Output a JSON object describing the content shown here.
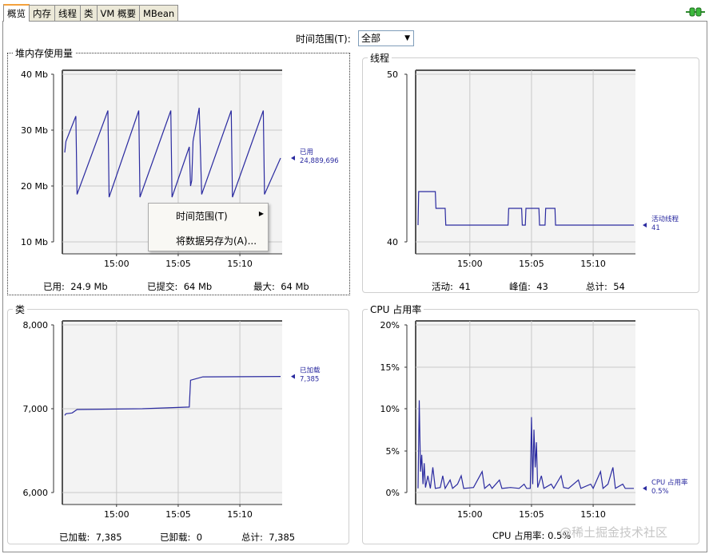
{
  "tabs": [
    "概览",
    "内存",
    "线程",
    "类",
    "VM 概要",
    "MBean"
  ],
  "time_range": {
    "label": "时间范围(T):",
    "value": "全部"
  },
  "context_menu": {
    "items": [
      "时间范围(T)",
      "将数据另存为(A)..."
    ]
  },
  "watermark": "@稀土掘金技术社区",
  "colors": {
    "line": "#2b2ba0",
    "grid": "#c8c8c8",
    "plot_bg": "#f3f3f3",
    "tab_accent": "#f4a13c"
  },
  "panels": {
    "heap": {
      "title": "堆内存使用量",
      "stats": [
        {
          "label": "已用:",
          "value": "24.9 Mb"
        },
        {
          "label": "已提交:",
          "value": "64 Mb"
        },
        {
          "label": "最大:",
          "value": "64 Mb"
        }
      ]
    },
    "threads": {
      "title": "线程",
      "stats": [
        {
          "label": "活动:",
          "value": "41"
        },
        {
          "label": "峰值:",
          "value": "43"
        },
        {
          "label": "总计:",
          "value": "54"
        }
      ]
    },
    "classes": {
      "title": "类",
      "stats": [
        {
          "label": "已加载:",
          "value": "7,385"
        },
        {
          "label": "已卸载:",
          "value": "0"
        },
        {
          "label": "总计:",
          "value": "7,385"
        }
      ]
    },
    "cpu": {
      "title": "CPU 占用率",
      "stats": [
        {
          "label": "CPU 占用率:",
          "value": "0.5%"
        }
      ]
    }
  },
  "chart_data": [
    {
      "id": "heap",
      "type": "line",
      "y_ticks": [
        "40 Mb",
        "30 Mb",
        "20 Mb",
        "10 Mb"
      ],
      "ylim": [
        10,
        40
      ],
      "x_ticks": [
        "15:00",
        "15:05",
        "15:10"
      ],
      "x_tick_minutes": [
        4.2,
        9.2,
        14.2
      ],
      "xlim_minutes": [
        0,
        17.5
      ],
      "series": [
        {
          "name": "已用",
          "last_value": "24,889,696",
          "points": [
            [
              0,
              26
            ],
            [
              0.1,
              28
            ],
            [
              0.9,
              32.5
            ],
            [
              1,
              18.5
            ],
            [
              3.5,
              33.5
            ],
            [
              3.6,
              18
            ],
            [
              6,
              33.5
            ],
            [
              6.1,
              18
            ],
            [
              8.6,
              33.5
            ],
            [
              8.7,
              18
            ],
            [
              10.1,
              27
            ],
            [
              10.2,
              20
            ],
            [
              10.3,
              21
            ],
            [
              10.4,
              28
            ],
            [
              10.9,
              34
            ],
            [
              11.1,
              18.5
            ],
            [
              13.5,
              33.5
            ],
            [
              13.6,
              18
            ],
            [
              16.1,
              33.5
            ],
            [
              16.2,
              18.5
            ],
            [
              17.5,
              25
            ]
          ]
        }
      ]
    },
    {
      "id": "threads",
      "type": "line",
      "y_ticks": [
        "50",
        "40"
      ],
      "ylim": [
        40,
        50
      ],
      "x_ticks": [
        "15:00",
        "15:05",
        "15:10"
      ],
      "x_tick_minutes": [
        4.2,
        9.2,
        14.2
      ],
      "xlim_minutes": [
        0,
        17.5
      ],
      "series": [
        {
          "name": "活动线程",
          "last_value": "41",
          "points": [
            [
              0,
              41
            ],
            [
              0.05,
              43
            ],
            [
              1.4,
              43
            ],
            [
              1.45,
              42
            ],
            [
              2.2,
              42
            ],
            [
              2.25,
              41
            ],
            [
              7.3,
              41
            ],
            [
              7.35,
              42
            ],
            [
              8.4,
              42
            ],
            [
              8.45,
              41
            ],
            [
              8.7,
              41
            ],
            [
              8.75,
              42
            ],
            [
              9.8,
              42
            ],
            [
              9.85,
              41
            ],
            [
              10.3,
              41
            ],
            [
              10.35,
              42
            ],
            [
              11.1,
              42
            ],
            [
              11.15,
              41
            ],
            [
              17.5,
              41
            ]
          ]
        }
      ]
    },
    {
      "id": "classes",
      "type": "line",
      "y_ticks": [
        "8,000",
        "7,000",
        "6,000"
      ],
      "ylim": [
        6000,
        8000
      ],
      "x_ticks": [
        "15:00",
        "15:05",
        "15:10"
      ],
      "x_tick_minutes": [
        4.2,
        9.2,
        14.2
      ],
      "xlim_minutes": [
        0,
        17.5
      ],
      "series": [
        {
          "name": "已加载",
          "last_value": "7,385",
          "points": [
            [
              0,
              6920
            ],
            [
              0.1,
              6940
            ],
            [
              0.6,
              6950
            ],
            [
              1,
              6990
            ],
            [
              6.3,
              7000
            ],
            [
              10.1,
              7020
            ],
            [
              10.2,
              7340
            ],
            [
              11.2,
              7380
            ],
            [
              17.5,
              7385
            ]
          ]
        }
      ]
    },
    {
      "id": "cpu",
      "type": "line",
      "y_ticks": [
        "20%",
        "15%",
        "10%",
        "5%",
        "0%"
      ],
      "ylim": [
        0,
        20
      ],
      "x_ticks": [
        "15:00",
        "15:05",
        "15:10"
      ],
      "x_tick_minutes": [
        4.2,
        9.2,
        14.2
      ],
      "xlim_minutes": [
        0,
        17.5
      ],
      "series": [
        {
          "name": "CPU 占用率",
          "last_value": "0.5%",
          "points": [
            [
              0,
              0.5
            ],
            [
              0.1,
              11
            ],
            [
              0.2,
              2.5
            ],
            [
              0.3,
              4.5
            ],
            [
              0.4,
              1
            ],
            [
              0.5,
              3.5
            ],
            [
              0.6,
              0.6
            ],
            [
              0.8,
              2
            ],
            [
              1,
              0.5
            ],
            [
              1.2,
              3
            ],
            [
              1.4,
              0.5
            ],
            [
              1.8,
              0.6
            ],
            [
              2,
              2
            ],
            [
              2.2,
              0.5
            ],
            [
              2.6,
              1.5
            ],
            [
              2.8,
              0.5
            ],
            [
              3.2,
              1
            ],
            [
              3.5,
              2
            ],
            [
              3.7,
              0.5
            ],
            [
              4.5,
              0.6
            ],
            [
              5.2,
              2.5
            ],
            [
              5.4,
              0.5
            ],
            [
              5.8,
              1
            ],
            [
              6,
              0.5
            ],
            [
              6.6,
              1.5
            ],
            [
              6.8,
              0.5
            ],
            [
              7.5,
              0.6
            ],
            [
              8.2,
              0.5
            ],
            [
              8.6,
              1
            ],
            [
              8.8,
              0.5
            ],
            [
              9.1,
              0.5
            ],
            [
              9.2,
              9
            ],
            [
              9.3,
              1
            ],
            [
              9.4,
              7.5
            ],
            [
              9.5,
              3
            ],
            [
              9.6,
              6
            ],
            [
              9.7,
              0.6
            ],
            [
              10,
              2
            ],
            [
              10.2,
              0.5
            ],
            [
              10.8,
              1
            ],
            [
              11,
              0.5
            ],
            [
              11.6,
              2
            ],
            [
              11.8,
              0.6
            ],
            [
              12.2,
              0.5
            ],
            [
              13,
              1.5
            ],
            [
              13.2,
              0.5
            ],
            [
              14,
              1
            ],
            [
              14.2,
              0.5
            ],
            [
              14.8,
              2.5
            ],
            [
              15,
              0.5
            ],
            [
              15.4,
              1
            ],
            [
              15.8,
              3
            ],
            [
              16,
              0.5
            ],
            [
              16.6,
              1
            ],
            [
              16.8,
              0.5
            ],
            [
              17.5,
              0.5
            ]
          ]
        }
      ]
    }
  ]
}
